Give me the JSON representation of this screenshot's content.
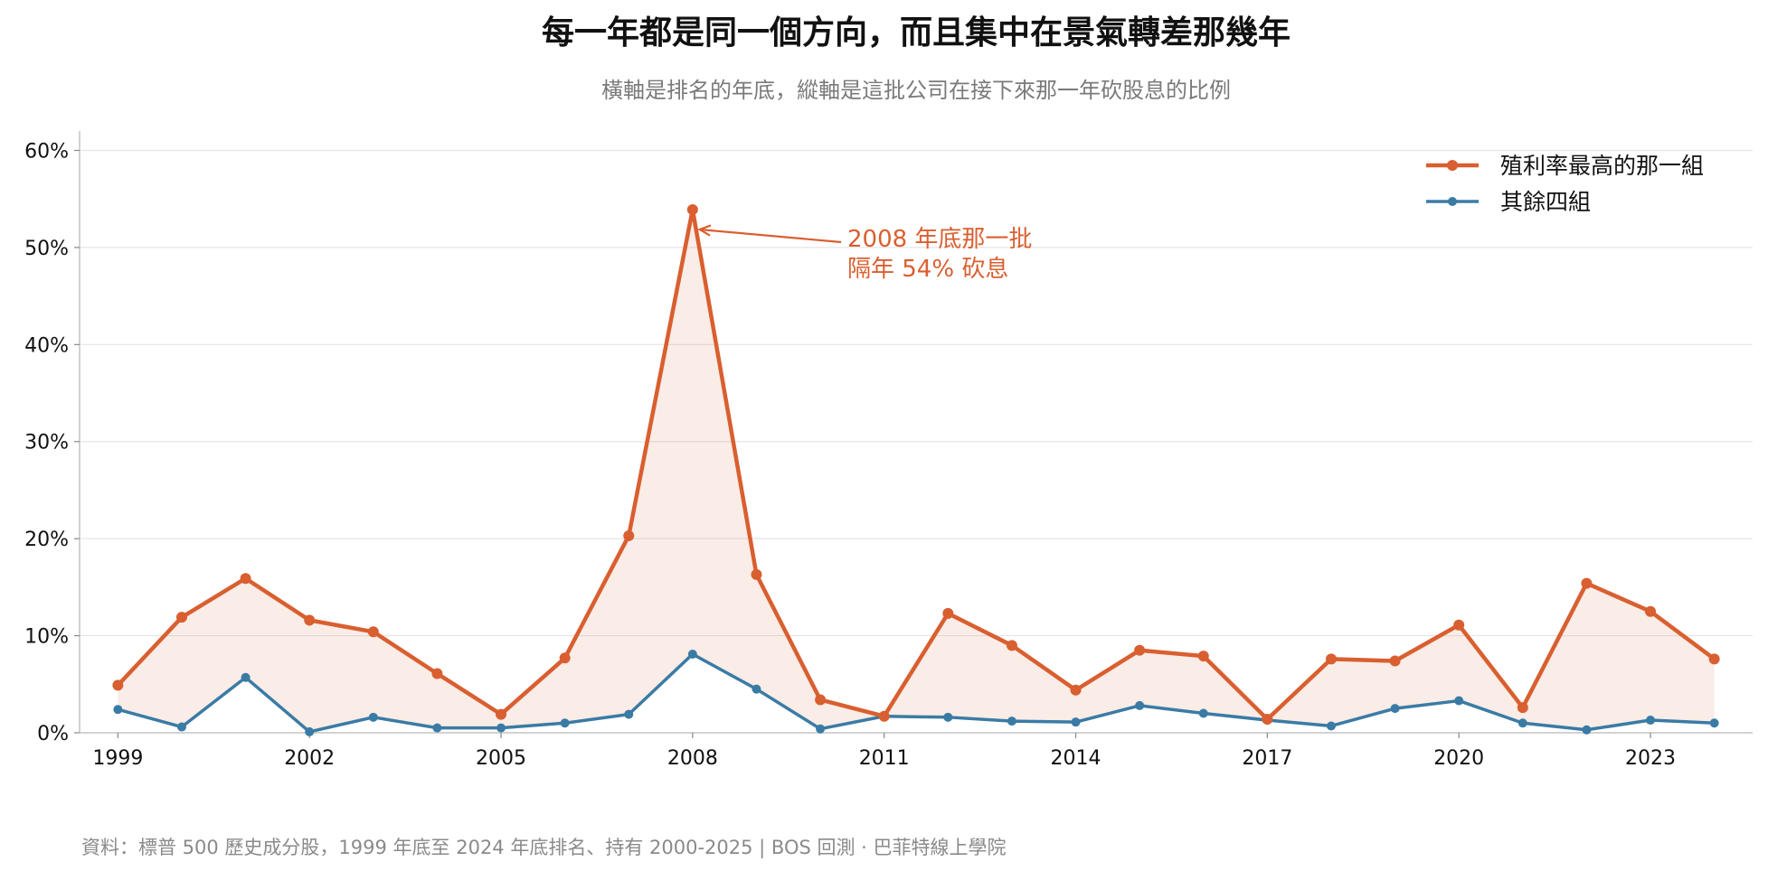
{
  "chart_data": {
    "type": "line",
    "title": "每一年都是同一個方向，而且集中在景氣轉差那幾年",
    "subtitle": "橫軸是排名的年底，縱軸是這批公司在接下來那一年砍股息的比例",
    "x": [
      1999,
      2000,
      2001,
      2002,
      2003,
      2004,
      2005,
      2006,
      2007,
      2008,
      2009,
      2010,
      2011,
      2012,
      2013,
      2014,
      2015,
      2016,
      2017,
      2018,
      2019,
      2020,
      2021,
      2022,
      2023,
      2024
    ],
    "x_ticks": [
      1999,
      2002,
      2005,
      2008,
      2011,
      2014,
      2017,
      2020,
      2023
    ],
    "x_tick_labels": [
      "1999",
      "2002",
      "2005",
      "2008",
      "2011",
      "2014",
      "2017",
      "2020",
      "2023"
    ],
    "xlim": [
      1998.4,
      2024.6
    ],
    "ylim": [
      0,
      62
    ],
    "y_ticks": [
      0,
      10,
      20,
      30,
      40,
      50,
      60
    ],
    "y_tick_labels": [
      "0%",
      "10%",
      "20%",
      "30%",
      "40%",
      "50%",
      "60%"
    ],
    "grid": "horizontal",
    "legend_position": "top-right",
    "series": [
      {
        "name": "殖利率最高的那一組",
        "color": "#d95f30",
        "values": [
          4.9,
          11.9,
          15.9,
          11.6,
          10.4,
          6.1,
          1.9,
          7.7,
          20.3,
          53.9,
          16.3,
          3.4,
          1.7,
          12.3,
          9.0,
          4.4,
          8.5,
          7.9,
          1.4,
          7.6,
          7.4,
          11.1,
          2.6,
          15.4,
          12.5,
          7.6
        ]
      },
      {
        "name": "其餘四組",
        "color": "#3a7ba5",
        "values": [
          2.4,
          0.6,
          5.7,
          0.1,
          1.6,
          0.5,
          0.5,
          1.0,
          1.9,
          8.1,
          4.5,
          0.4,
          1.7,
          1.6,
          1.2,
          1.1,
          2.8,
          2.0,
          1.3,
          0.7,
          2.5,
          3.3,
          1.0,
          0.3,
          1.3,
          1.0
        ]
      }
    ],
    "fill_between": {
      "color": "#d95f30",
      "opacity": 0.12
    },
    "annotation": {
      "line1": "2008 年底那一批",
      "line2": "隔年 54% 砍息",
      "x": 2008,
      "y": 53.9,
      "color": "#d95f30"
    },
    "source": "資料：標普 500 歷史成分股，1999 年底至 2024 年底排名、持有 2000-2025 | BOS 回測 ·   巴菲特線上學院"
  }
}
